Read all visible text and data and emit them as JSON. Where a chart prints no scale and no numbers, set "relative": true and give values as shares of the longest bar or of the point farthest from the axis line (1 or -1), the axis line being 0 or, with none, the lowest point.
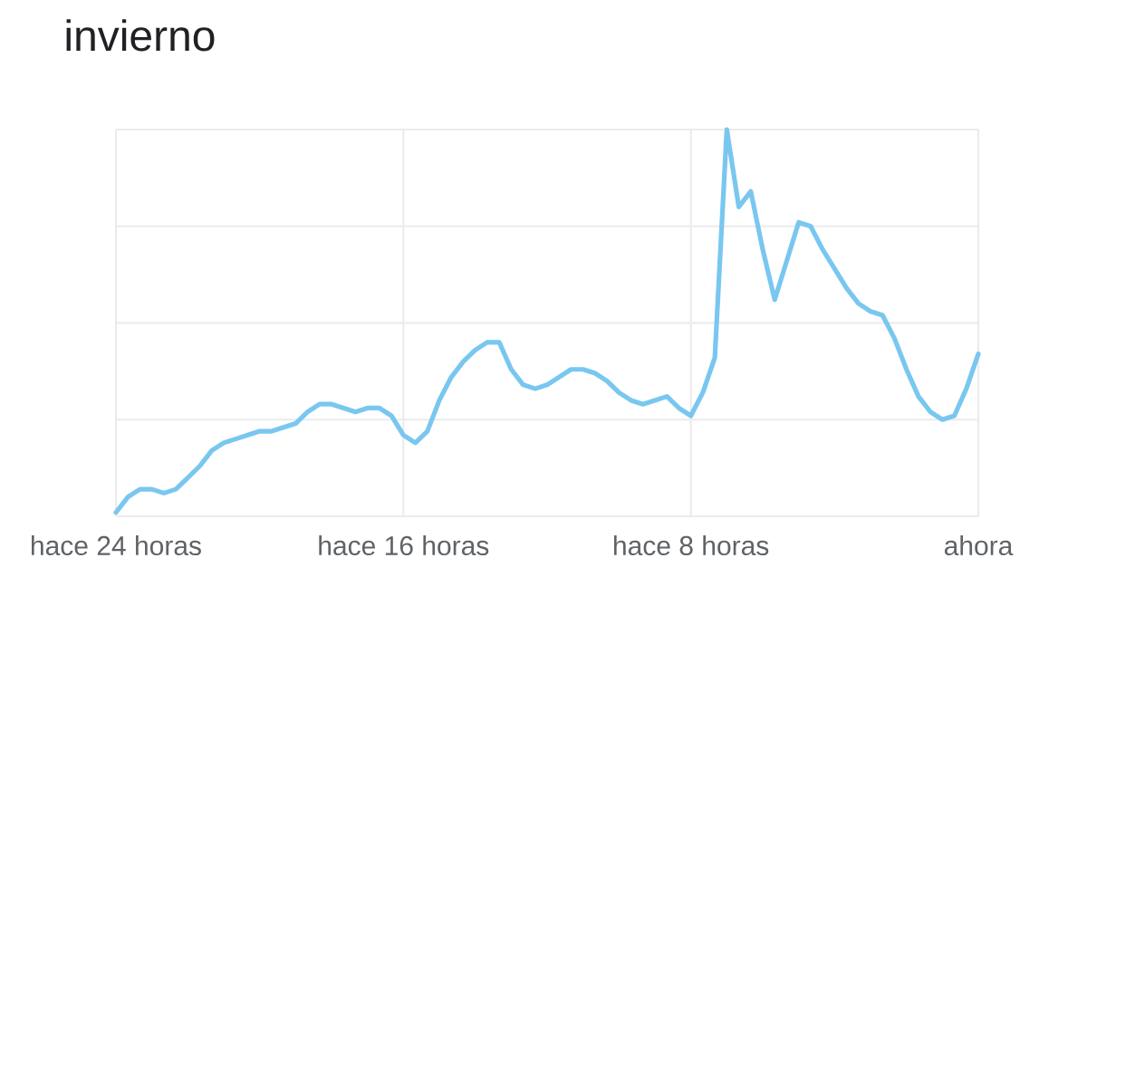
{
  "chart_data": {
    "type": "line",
    "title": "invierno",
    "relative": true,
    "color": "#79c7f0",
    "categories": [
      "hace 24 horas",
      null,
      null,
      null,
      null,
      null,
      null,
      null,
      null,
      null,
      null,
      null,
      null,
      null,
      null,
      null,
      null,
      null,
      null,
      null,
      null,
      null,
      null,
      null,
      "hace 16 horas",
      null,
      null,
      null,
      null,
      null,
      null,
      null,
      null,
      null,
      null,
      null,
      null,
      null,
      null,
      null,
      null,
      null,
      null,
      null,
      null,
      null,
      null,
      null,
      "hace 8 horas",
      null,
      null,
      null,
      null,
      null,
      null,
      null,
      null,
      null,
      null,
      null,
      null,
      null,
      null,
      null,
      null,
      null,
      null,
      null,
      null,
      null,
      null,
      null,
      "ahora"
    ],
    "values": [
      0.01,
      0.05,
      0.07,
      0.07,
      0.06,
      0.07,
      0.1,
      0.13,
      0.17,
      0.19,
      0.2,
      0.21,
      0.22,
      0.22,
      0.23,
      0.24,
      0.27,
      0.29,
      0.29,
      0.28,
      0.27,
      0.28,
      0.28,
      0.26,
      0.21,
      0.19,
      0.22,
      0.3,
      0.36,
      0.4,
      0.43,
      0.45,
      0.45,
      0.38,
      0.34,
      0.33,
      0.34,
      0.36,
      0.38,
      0.38,
      0.37,
      0.35,
      0.32,
      0.3,
      0.29,
      0.3,
      0.31,
      0.28,
      0.26,
      0.32,
      0.41,
      1.0,
      0.8,
      0.84,
      0.69,
      0.56,
      0.66,
      0.76,
      0.75,
      0.69,
      0.64,
      0.59,
      0.55,
      0.53,
      0.52,
      0.46,
      0.38,
      0.31,
      0.27,
      0.25,
      0.26,
      0.33,
      0.42
    ],
    "grid": true
  }
}
